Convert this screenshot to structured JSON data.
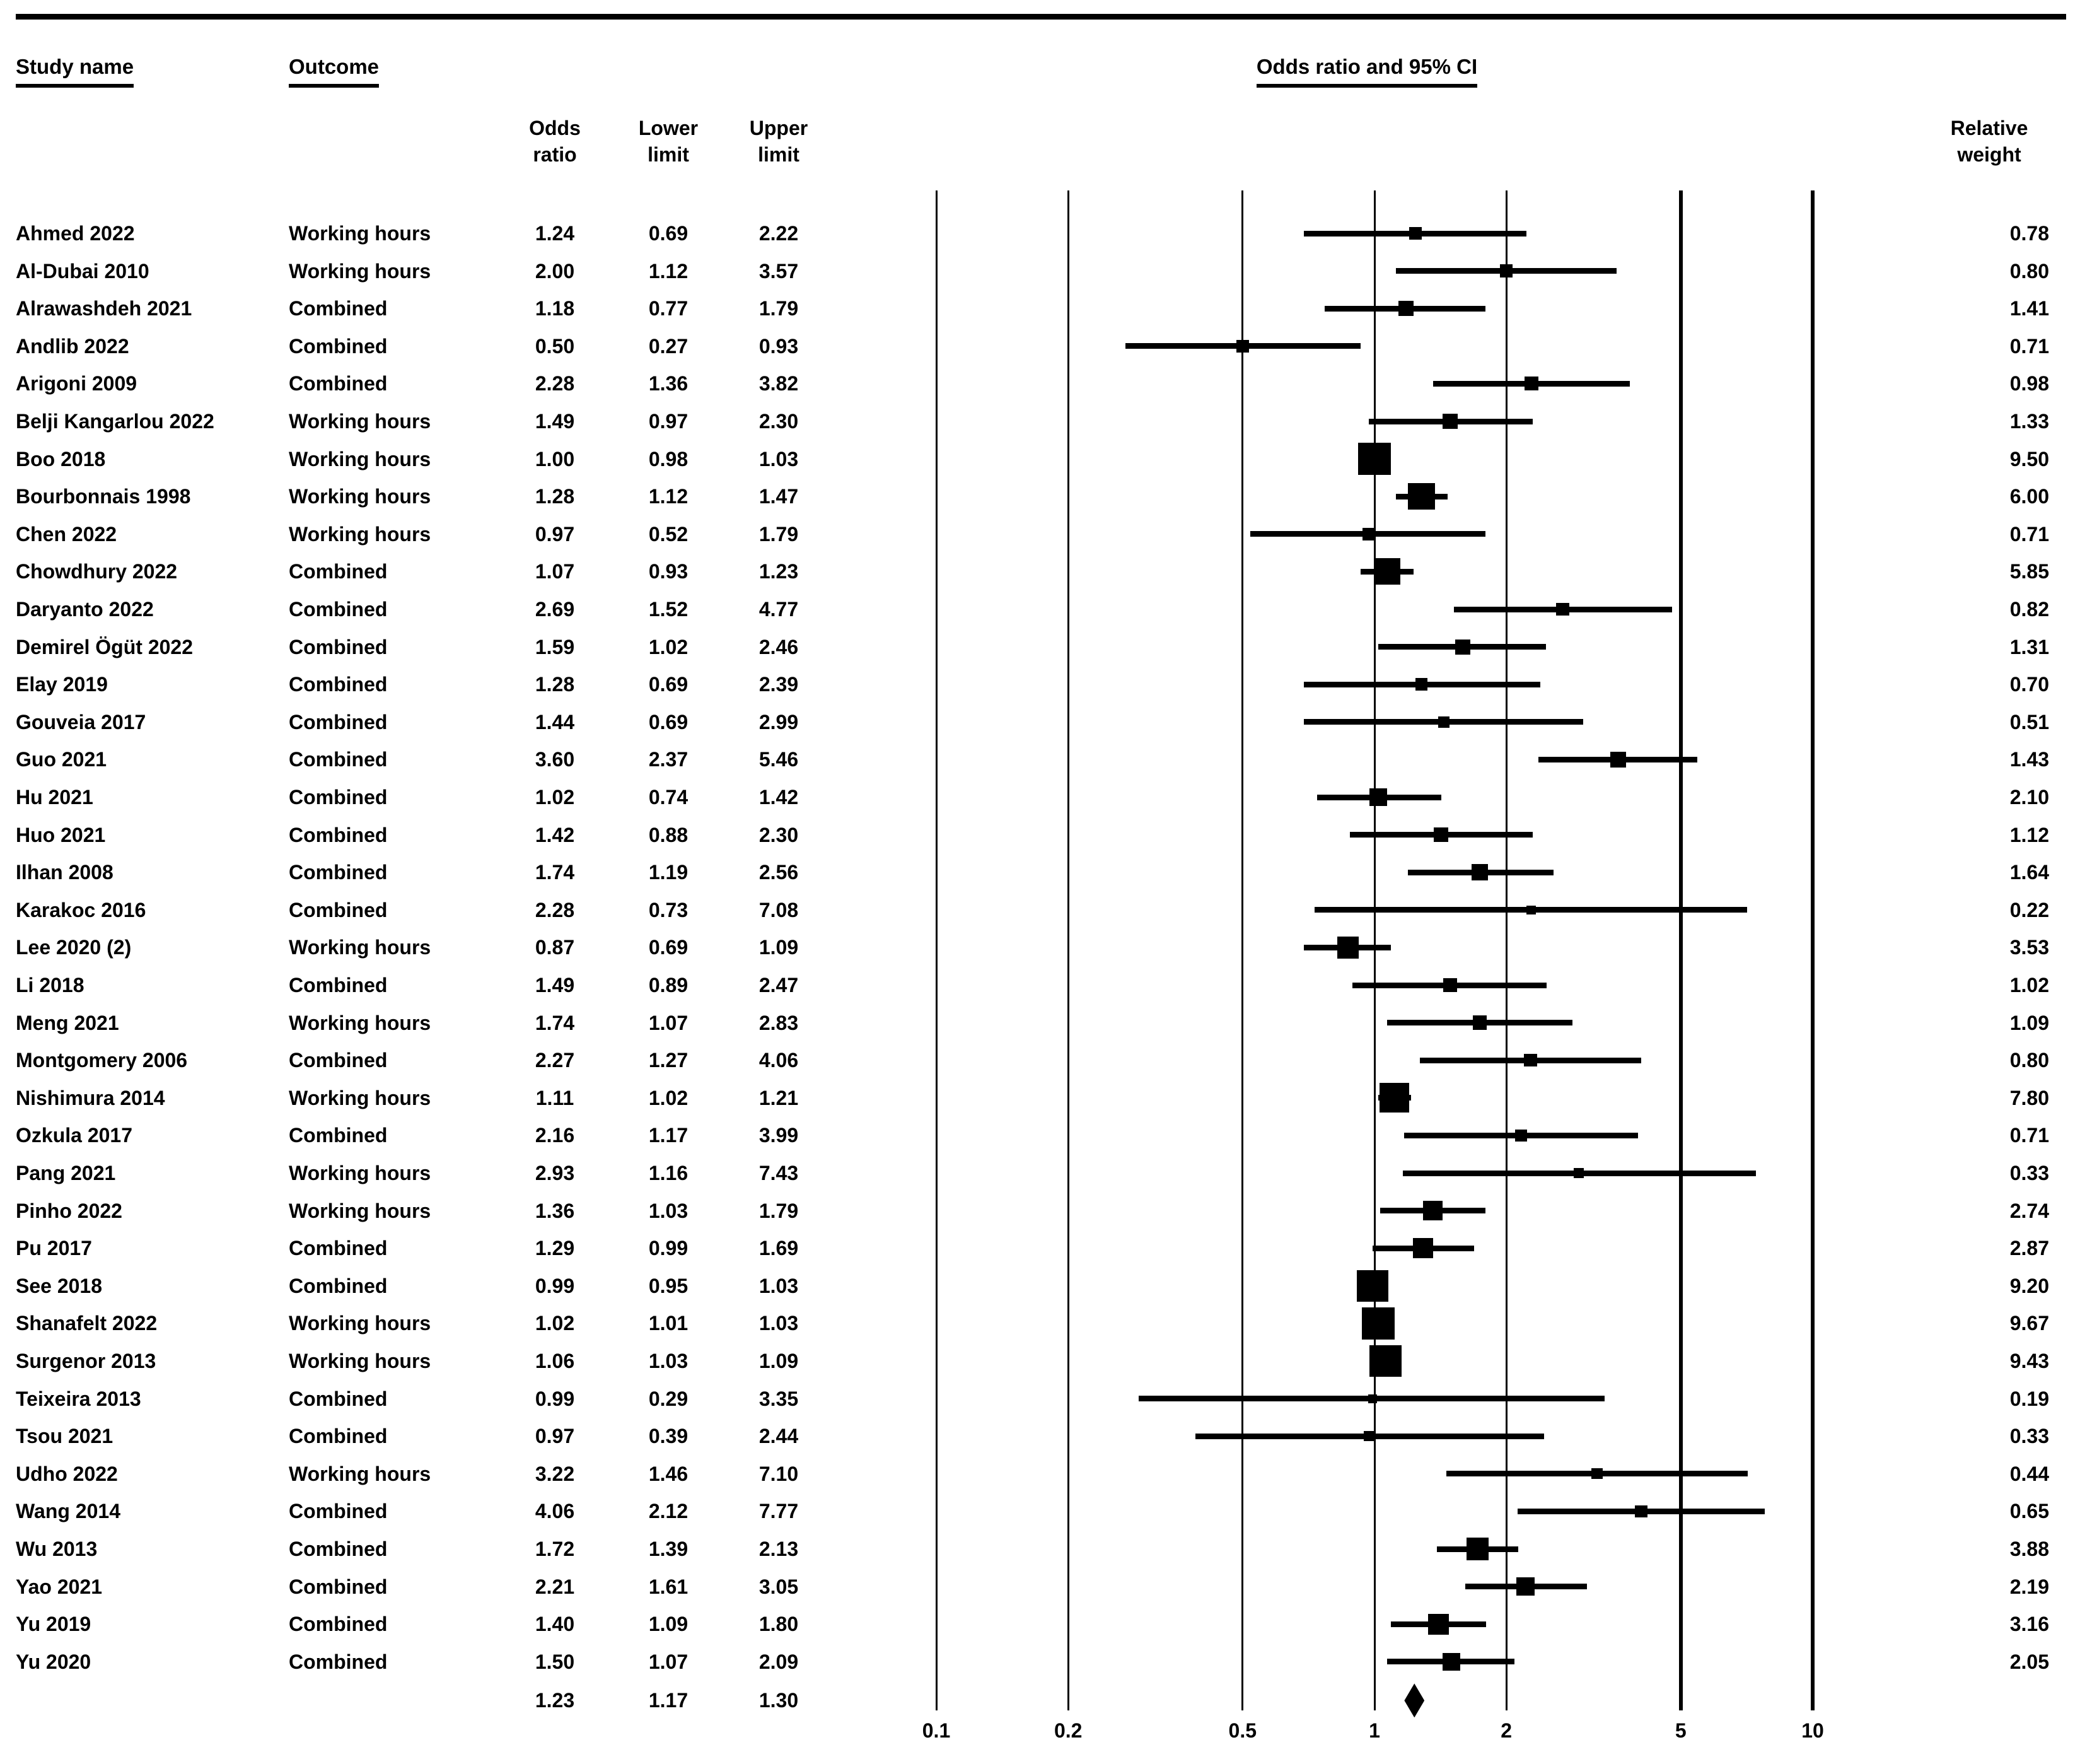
{
  "header": {
    "study_name": "Study name",
    "outcome": "Outcome",
    "or_ci_title": "Odds ratio and 95% CI",
    "col_odds_line1": "Odds",
    "col_odds_line2": "ratio",
    "col_lower_line1": "Lower",
    "col_lower_line2": "limit",
    "col_upper_line1": "Upper",
    "col_upper_line2": "limit",
    "col_weight_line1": "Relative",
    "col_weight_line2": "weight"
  },
  "colors": {
    "ink": "#000000",
    "background": "#ffffff"
  },
  "chart_data": {
    "type": "scatter",
    "subtype": "forest-plot",
    "title": "Odds ratio and 95% CI",
    "x_axis": {
      "scale": "log10",
      "ticks": [
        0.1,
        0.2,
        0.5,
        1,
        2,
        5,
        10
      ],
      "range": [
        0.1,
        10
      ],
      "grid": true
    },
    "columns": [
      "Study name",
      "Outcome",
      "Odds ratio",
      "Lower limit",
      "Upper limit",
      "Relative weight"
    ],
    "studies": [
      {
        "name": "Ahmed 2022",
        "outcome": "Working hours",
        "or": 1.24,
        "lower": 0.69,
        "upper": 2.22,
        "weight": 0.78
      },
      {
        "name": "Al-Dubai 2010",
        "outcome": "Working hours",
        "or": 2.0,
        "lower": 1.12,
        "upper": 3.57,
        "weight": 0.8
      },
      {
        "name": "Alrawashdeh 2021",
        "outcome": "Combined",
        "or": 1.18,
        "lower": 0.77,
        "upper": 1.79,
        "weight": 1.41
      },
      {
        "name": "Andlib 2022",
        "outcome": "Combined",
        "or": 0.5,
        "lower": 0.27,
        "upper": 0.93,
        "weight": 0.71
      },
      {
        "name": "Arigoni 2009",
        "outcome": "Combined",
        "or": 2.28,
        "lower": 1.36,
        "upper": 3.82,
        "weight": 0.98
      },
      {
        "name": "Belji Kangarlou 2022",
        "outcome": "Working hours",
        "or": 1.49,
        "lower": 0.97,
        "upper": 2.3,
        "weight": 1.33
      },
      {
        "name": "Boo 2018",
        "outcome": "Working hours",
        "or": 1.0,
        "lower": 0.98,
        "upper": 1.03,
        "weight": 9.5
      },
      {
        "name": "Bourbonnais 1998",
        "outcome": "Working hours",
        "or": 1.28,
        "lower": 1.12,
        "upper": 1.47,
        "weight": 6.0
      },
      {
        "name": "Chen 2022",
        "outcome": "Working hours",
        "or": 0.97,
        "lower": 0.52,
        "upper": 1.79,
        "weight": 0.71
      },
      {
        "name": "Chowdhury 2022",
        "outcome": "Combined",
        "or": 1.07,
        "lower": 0.93,
        "upper": 1.23,
        "weight": 5.85
      },
      {
        "name": "Daryanto 2022",
        "outcome": "Combined",
        "or": 2.69,
        "lower": 1.52,
        "upper": 4.77,
        "weight": 0.82
      },
      {
        "name": "Demirel Ögüt 2022",
        "outcome": "Combined",
        "or": 1.59,
        "lower": 1.02,
        "upper": 2.46,
        "weight": 1.31
      },
      {
        "name": "Elay 2019",
        "outcome": "Combined",
        "or": 1.28,
        "lower": 0.69,
        "upper": 2.39,
        "weight": 0.7
      },
      {
        "name": "Gouveia 2017",
        "outcome": "Combined",
        "or": 1.44,
        "lower": 0.69,
        "upper": 2.99,
        "weight": 0.51
      },
      {
        "name": "Guo 2021",
        "outcome": "Combined",
        "or": 3.6,
        "lower": 2.37,
        "upper": 5.46,
        "weight": 1.43
      },
      {
        "name": "Hu 2021",
        "outcome": "Combined",
        "or": 1.02,
        "lower": 0.74,
        "upper": 1.42,
        "weight": 2.1
      },
      {
        "name": "Huo 2021",
        "outcome": "Combined",
        "or": 1.42,
        "lower": 0.88,
        "upper": 2.3,
        "weight": 1.12
      },
      {
        "name": "Ilhan 2008",
        "outcome": "Combined",
        "or": 1.74,
        "lower": 1.19,
        "upper": 2.56,
        "weight": 1.64
      },
      {
        "name": "Karakoc 2016",
        "outcome": "Combined",
        "or": 2.28,
        "lower": 0.73,
        "upper": 7.08,
        "weight": 0.22
      },
      {
        "name": "Lee 2020 (2)",
        "outcome": "Working hours",
        "or": 0.87,
        "lower": 0.69,
        "upper": 1.09,
        "weight": 3.53
      },
      {
        "name": "Li 2018",
        "outcome": "Combined",
        "or": 1.49,
        "lower": 0.89,
        "upper": 2.47,
        "weight": 1.02
      },
      {
        "name": "Meng 2021",
        "outcome": "Working hours",
        "or": 1.74,
        "lower": 1.07,
        "upper": 2.83,
        "weight": 1.09
      },
      {
        "name": "Montgomery 2006",
        "outcome": "Combined",
        "or": 2.27,
        "lower": 1.27,
        "upper": 4.06,
        "weight": 0.8
      },
      {
        "name": "Nishimura 2014",
        "outcome": "Working hours",
        "or": 1.11,
        "lower": 1.02,
        "upper": 1.21,
        "weight": 7.8
      },
      {
        "name": "Ozkula 2017",
        "outcome": "Combined",
        "or": 2.16,
        "lower": 1.17,
        "upper": 3.99,
        "weight": 0.71
      },
      {
        "name": "Pang 2021",
        "outcome": "Working hours",
        "or": 2.93,
        "lower": 1.16,
        "upper": 7.43,
        "weight": 0.33
      },
      {
        "name": "Pinho 2022",
        "outcome": "Working hours",
        "or": 1.36,
        "lower": 1.03,
        "upper": 1.79,
        "weight": 2.74
      },
      {
        "name": "Pu 2017",
        "outcome": "Combined",
        "or": 1.29,
        "lower": 0.99,
        "upper": 1.69,
        "weight": 2.87
      },
      {
        "name": "See 2018",
        "outcome": "Combined",
        "or": 0.99,
        "lower": 0.95,
        "upper": 1.03,
        "weight": 9.2
      },
      {
        "name": "Shanafelt 2022",
        "outcome": "Working hours",
        "or": 1.02,
        "lower": 1.01,
        "upper": 1.03,
        "weight": 9.67
      },
      {
        "name": "Surgenor 2013",
        "outcome": "Working hours",
        "or": 1.06,
        "lower": 1.03,
        "upper": 1.09,
        "weight": 9.43
      },
      {
        "name": "Teixeira 2013",
        "outcome": "Combined",
        "or": 0.99,
        "lower": 0.29,
        "upper": 3.35,
        "weight": 0.19
      },
      {
        "name": "Tsou 2021",
        "outcome": "Combined",
        "or": 0.97,
        "lower": 0.39,
        "upper": 2.44,
        "weight": 0.33
      },
      {
        "name": "Udho 2022",
        "outcome": "Working hours",
        "or": 3.22,
        "lower": 1.46,
        "upper": 7.1,
        "weight": 0.44
      },
      {
        "name": "Wang 2014",
        "outcome": "Combined",
        "or": 4.06,
        "lower": 2.12,
        "upper": 7.77,
        "weight": 0.65
      },
      {
        "name": "Wu 2013",
        "outcome": "Combined",
        "or": 1.72,
        "lower": 1.39,
        "upper": 2.13,
        "weight": 3.88
      },
      {
        "name": "Yao 2021",
        "outcome": "Combined",
        "or": 2.21,
        "lower": 1.61,
        "upper": 3.05,
        "weight": 2.19
      },
      {
        "name": "Yu 2019",
        "outcome": "Combined",
        "or": 1.4,
        "lower": 1.09,
        "upper": 1.8,
        "weight": 3.16
      },
      {
        "name": "Yu 2020",
        "outcome": "Combined",
        "or": 1.5,
        "lower": 1.07,
        "upper": 2.09,
        "weight": 2.05
      }
    ],
    "overall": {
      "or": 1.23,
      "lower": 1.17,
      "upper": 1.3
    }
  }
}
